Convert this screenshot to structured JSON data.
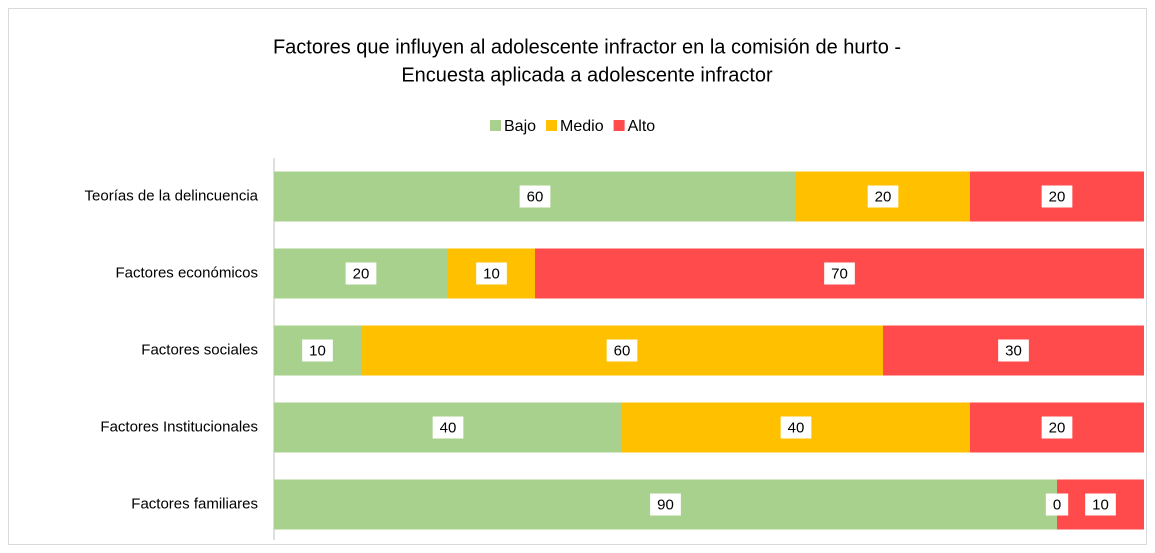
{
  "chart_data": {
    "type": "stacked-bar-horizontal",
    "title": [
      "Factores que influyen al adolescente infractor en la comisión de hurto -",
      "Encuesta aplicada a adolescente infractor"
    ],
    "categories": [
      "Teorías de la delincuencia",
      "Factores económicos",
      "Factores sociales",
      "Factores Institucionales",
      "Factores familiares"
    ],
    "series": [
      {
        "name": "Bajo",
        "color": "#a9d18e",
        "values": [
          60,
          20,
          10,
          40,
          90
        ]
      },
      {
        "name": "Medio",
        "color": "#ffc000",
        "values": [
          20,
          10,
          60,
          40,
          0
        ]
      },
      {
        "name": "Alto",
        "color": "#ff4b4b",
        "values": [
          20,
          70,
          30,
          20,
          10
        ]
      }
    ],
    "xlim": [
      0,
      100
    ],
    "legend": "top"
  }
}
